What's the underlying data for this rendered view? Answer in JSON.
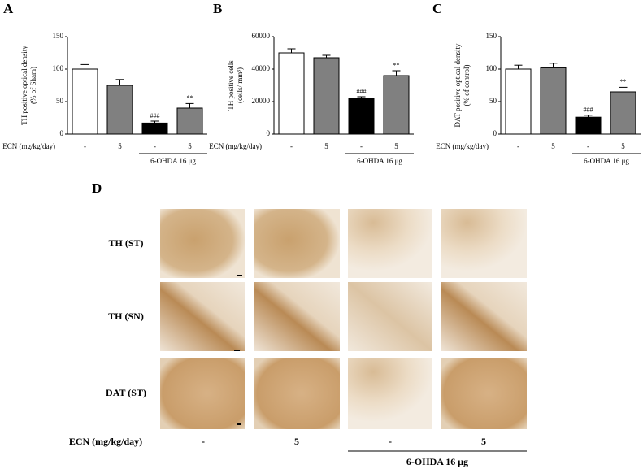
{
  "chart_data": [
    {
      "type": "bar",
      "panel": "A",
      "ylabel": [
        "TH positive optical density",
        "(% of Sham)"
      ],
      "x_label": "ECN (mg/kg/day)",
      "categories": [
        "-",
        "5",
        "-",
        "5"
      ],
      "values": [
        100,
        75,
        17,
        40
      ],
      "errors": [
        7,
        9,
        3,
        7
      ],
      "colors": [
        "#ffffff",
        "#808080",
        "#000000",
        "#808080"
      ],
      "value_annotations": [
        null,
        null,
        "###",
        "**"
      ],
      "group_label": "6-OHDA 16 μg",
      "ylim": [
        0,
        150
      ],
      "yticks": [
        0,
        50,
        100,
        150
      ],
      "grid": false
    },
    {
      "type": "bar",
      "panel": "B",
      "ylabel": [
        "TH positive cells",
        "(cells/ mm³)"
      ],
      "x_label": "ECN (mg/kg/day)",
      "categories": [
        "-",
        "5",
        "-",
        "5"
      ],
      "values": [
        50000,
        47000,
        22000,
        36000
      ],
      "errors": [
        2500,
        1500,
        1000,
        3000
      ],
      "colors": [
        "#ffffff",
        "#808080",
        "#000000",
        "#808080"
      ],
      "value_annotations": [
        null,
        null,
        "###",
        "**"
      ],
      "group_label": "6-OHDA 16 μg",
      "ylim": [
        0,
        60000
      ],
      "yticks": [
        0,
        20000,
        40000,
        60000
      ],
      "grid": false
    },
    {
      "type": "bar",
      "panel": "C",
      "ylabel": [
        "DAT positive optical density",
        "(% of control)"
      ],
      "x_label": "ECN (mg/kg/day)",
      "categories": [
        "-",
        "5",
        "-",
        "5"
      ],
      "values": [
        100,
        102,
        26,
        65
      ],
      "errors": [
        6,
        7,
        3,
        7
      ],
      "colors": [
        "#ffffff",
        "#808080",
        "#000000",
        "#808080"
      ],
      "value_annotations": [
        null,
        null,
        "###",
        "**"
      ],
      "group_label": "6-OHDA 16 μg",
      "ylim": [
        0,
        150
      ],
      "yticks": [
        0,
        50,
        100,
        150
      ],
      "grid": false
    }
  ],
  "panel_d": {
    "panel": "D",
    "rows": [
      "TH (ST)",
      "TH (SN)",
      "DAT (ST)"
    ],
    "x_label": "ECN (mg/kg/day)",
    "columns": [
      "-",
      "5",
      "-",
      "5"
    ],
    "group_label": "6-OHDA 16 μg"
  }
}
